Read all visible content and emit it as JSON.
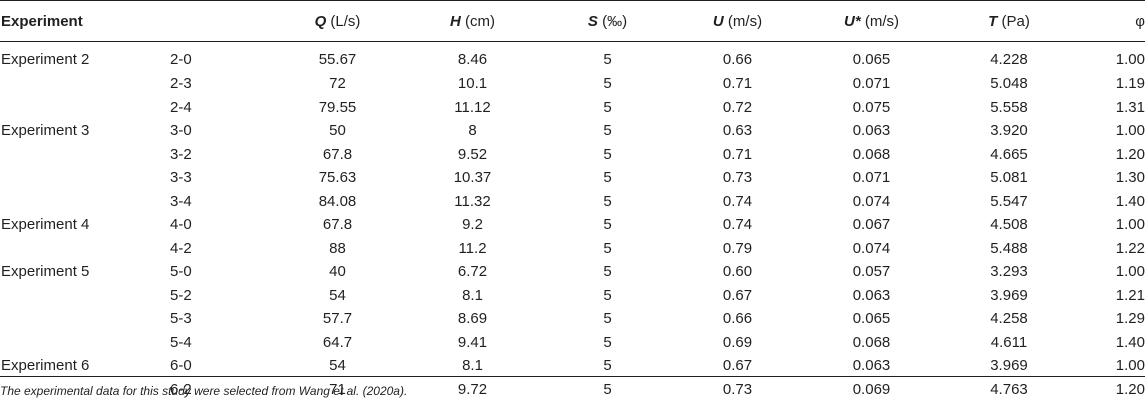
{
  "table": {
    "headers": {
      "experiment": "Experiment",
      "q_sym": "Q",
      "q_unit": "(L/s)",
      "h_sym": "H",
      "h_unit": "(cm)",
      "s_sym": "S",
      "s_unit": "(‰)",
      "u_sym": "U",
      "u_unit": "(m/s)",
      "ustar_sym": "U*",
      "ustar_unit": "(m/s)",
      "t_sym": "T",
      "t_unit": "(Pa)",
      "phi": "φ"
    },
    "rows": [
      {
        "experiment": "Experiment 2",
        "run": "2-0",
        "Q": "55.67",
        "H": "8.46",
        "S": "5",
        "U": "0.66",
        "Ustar": "0.065",
        "T": "4.228",
        "phi": "1.00"
      },
      {
        "experiment": "",
        "run": "2-3",
        "Q": "72",
        "H": "10.1",
        "S": "5",
        "U": "0.71",
        "Ustar": "0.071",
        "T": "5.048",
        "phi": "1.19"
      },
      {
        "experiment": "",
        "run": "2-4",
        "Q": "79.55",
        "H": "11.12",
        "S": "5",
        "U": "0.72",
        "Ustar": "0.075",
        "T": "5.558",
        "phi": "1.31"
      },
      {
        "experiment": "Experiment 3",
        "run": "3-0",
        "Q": "50",
        "H": "8",
        "S": "5",
        "U": "0.63",
        "Ustar": "0.063",
        "T": "3.920",
        "phi": "1.00"
      },
      {
        "experiment": "",
        "run": "3-2",
        "Q": "67.8",
        "H": "9.52",
        "S": "5",
        "U": "0.71",
        "Ustar": "0.068",
        "T": "4.665",
        "phi": "1.20"
      },
      {
        "experiment": "",
        "run": "3-3",
        "Q": "75.63",
        "H": "10.37",
        "S": "5",
        "U": "0.73",
        "Ustar": "0.071",
        "T": "5.081",
        "phi": "1.30"
      },
      {
        "experiment": "",
        "run": "3-4",
        "Q": "84.08",
        "H": "11.32",
        "S": "5",
        "U": "0.74",
        "Ustar": "0.074",
        "T": "5.547",
        "phi": "1.40"
      },
      {
        "experiment": "Experiment 4",
        "run": "4-0",
        "Q": "67.8",
        "H": "9.2",
        "S": "5",
        "U": "0.74",
        "Ustar": "0.067",
        "T": "4.508",
        "phi": "1.00"
      },
      {
        "experiment": "",
        "run": "4-2",
        "Q": "88",
        "H": "11.2",
        "S": "5",
        "U": "0.79",
        "Ustar": "0.074",
        "T": "5.488",
        "phi": "1.22"
      },
      {
        "experiment": "Experiment 5",
        "run": "5-0",
        "Q": "40",
        "H": "6.72",
        "S": "5",
        "U": "0.60",
        "Ustar": "0.057",
        "T": "3.293",
        "phi": "1.00"
      },
      {
        "experiment": "",
        "run": "5-2",
        "Q": "54",
        "H": "8.1",
        "S": "5",
        "U": "0.67",
        "Ustar": "0.063",
        "T": "3.969",
        "phi": "1.21"
      },
      {
        "experiment": "",
        "run": "5-3",
        "Q": "57.7",
        "H": "8.69",
        "S": "5",
        "U": "0.66",
        "Ustar": "0.065",
        "T": "4.258",
        "phi": "1.29"
      },
      {
        "experiment": "",
        "run": "5-4",
        "Q": "64.7",
        "H": "9.41",
        "S": "5",
        "U": "0.69",
        "Ustar": "0.068",
        "T": "4.611",
        "phi": "1.40"
      },
      {
        "experiment": "Experiment 6",
        "run": "6-0",
        "Q": "54",
        "H": "8.1",
        "S": "5",
        "U": "0.67",
        "Ustar": "0.063",
        "T": "3.969",
        "phi": "1.00"
      },
      {
        "experiment": "",
        "run": "6-2",
        "Q": "71",
        "H": "9.72",
        "S": "5",
        "U": "0.73",
        "Ustar": "0.069",
        "T": "4.763",
        "phi": "1.20"
      }
    ]
  },
  "footnote": "The experimental data for this study were selected from Wang et al. (2020a)."
}
